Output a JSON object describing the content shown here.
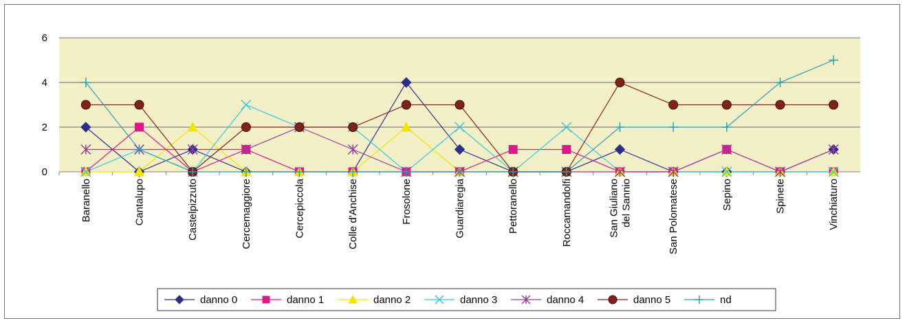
{
  "chart_data": {
    "type": "line",
    "categories": [
      [
        "Baranello"
      ],
      [
        "Cantalupo"
      ],
      [
        "Castelpizzuto"
      ],
      [
        "Cercemaggiore"
      ],
      [
        "Cercepiccola"
      ],
      [
        "Colle d'Anchise"
      ],
      [
        "Frosolone"
      ],
      [
        "Guardiaregia"
      ],
      [
        "Pettoranello"
      ],
      [
        "Roccamandolfi"
      ],
      [
        "San Giuliano",
        "del Sannio"
      ],
      [
        "San Polomatese"
      ],
      [
        "Sepino"
      ],
      [
        "Spinete"
      ],
      [
        "Vinchiaturo"
      ]
    ],
    "ylim": [
      0,
      6
    ],
    "yticks": [
      "0",
      "2",
      "4",
      "6"
    ],
    "grid": "horizontal",
    "plot_background": "#f3f0c8",
    "legend_position": "bottom",
    "series": [
      {
        "name": "danno 0",
        "color": "#2b2f86",
        "marker": "diamond",
        "values": [
          2,
          0,
          1,
          0,
          0,
          0,
          4,
          1,
          0,
          0,
          1,
          0,
          0,
          0,
          1
        ]
      },
      {
        "name": "danno 1",
        "color": "#e0168a",
        "marker": "square",
        "values": [
          0,
          2,
          0,
          1,
          0,
          0,
          0,
          0,
          1,
          1,
          0,
          0,
          1,
          0,
          0
        ]
      },
      {
        "name": "danno 2",
        "color": "#f2e600",
        "marker": "triangle",
        "values": [
          0,
          0,
          2,
          0,
          0,
          0,
          2,
          0,
          0,
          0,
          0,
          0,
          0,
          0,
          0
        ]
      },
      {
        "name": "danno 3",
        "color": "#34c8e0",
        "marker": "x",
        "values": [
          0,
          1,
          0,
          3,
          2,
          2,
          0,
          2,
          0,
          2,
          0,
          0,
          0,
          0,
          0
        ]
      },
      {
        "name": "danno 4",
        "color": "#9a3c9c",
        "marker": "star",
        "values": [
          1,
          1,
          1,
          1,
          2,
          1,
          0,
          0,
          0,
          0,
          0,
          0,
          1,
          0,
          1
        ]
      },
      {
        "name": "danno 5",
        "color": "#7f2218",
        "marker": "circle",
        "values": [
          3,
          3,
          0,
          2,
          2,
          2,
          3,
          3,
          0,
          0,
          4,
          3,
          3,
          3,
          3
        ]
      },
      {
        "name": "nd",
        "color": "#2a9fb0",
        "marker": "plus",
        "values": [
          4,
          1,
          0,
          0,
          0,
          0,
          0,
          0,
          0,
          0,
          2,
          2,
          2,
          4,
          5
        ]
      }
    ]
  }
}
